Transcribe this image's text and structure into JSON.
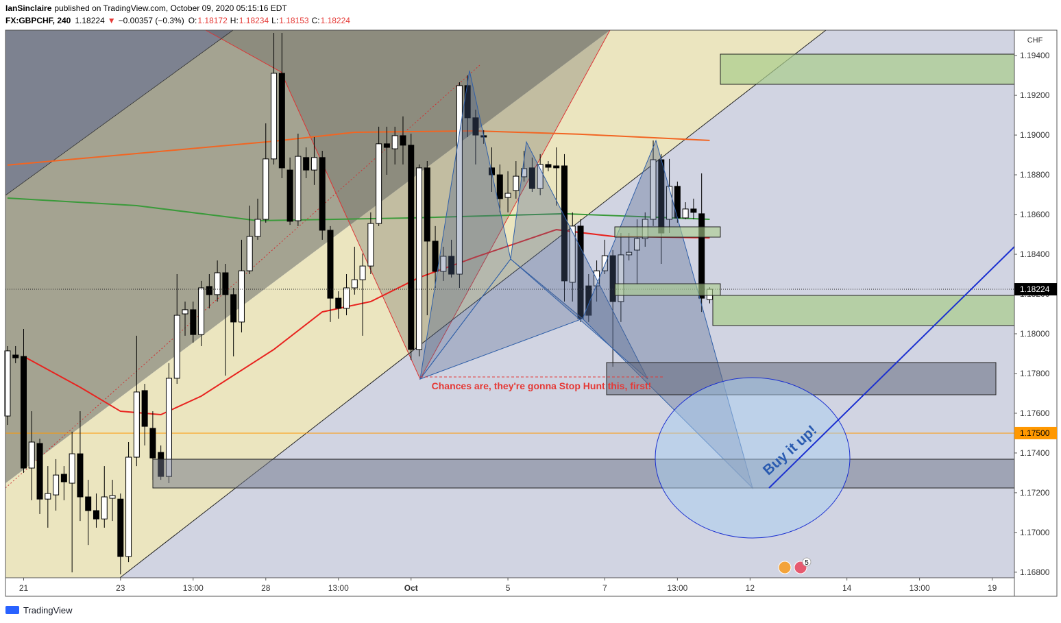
{
  "header": {
    "author": "IanSinclaire",
    "published": "published on TradingView.com, October 09, 2020 05:15:16 EDT",
    "symbol": "FX:GBPCHF, 240",
    "last": "1.18224",
    "arrow": "▼",
    "change": "−0.00357 (−0.3%)",
    "ohlc": [
      {
        "label": "O:",
        "value": "1.18172"
      },
      {
        "label": "H:",
        "value": "1.18234"
      },
      {
        "label": "L:",
        "value": "1.18153"
      },
      {
        "label": "C:",
        "value": "1.18224"
      }
    ]
  },
  "chart_data": {
    "type": "candlestick",
    "currency": "CHF",
    "up_color": "#ffffff",
    "down_color": "#000000",
    "x": [
      0,
      1,
      2,
      3,
      4,
      5,
      6,
      7,
      8,
      9,
      10,
      11,
      12,
      13,
      14,
      15,
      16,
      17,
      18,
      19,
      20,
      21,
      22,
      23,
      24,
      25,
      26,
      27,
      28,
      29,
      30,
      31,
      32,
      33,
      34,
      35,
      36,
      37,
      38,
      39,
      40,
      41,
      42,
      43,
      44,
      45,
      46,
      47,
      48,
      49,
      50,
      51,
      52,
      53,
      54,
      55,
      56,
      57,
      58,
      59,
      60,
      61,
      62,
      63,
      64,
      65,
      66,
      67,
      68,
      69,
      70,
      71,
      72,
      73,
      74,
      75,
      76,
      77,
      78,
      79,
      80,
      81,
      82,
      83,
      84,
      85,
      86,
      87
    ],
    "open": [
      1.17586,
      1.17893,
      1.17886,
      1.17324,
      1.17448,
      1.17168,
      1.17189,
      1.17293,
      1.17248,
      1.17396,
      1.17179,
      1.1711,
      1.17068,
      1.17172,
      1.17168,
      1.16879,
      1.17379,
      1.17714,
      1.17524,
      1.17403,
      1.17282,
      1.17776,
      1.181,
      1.18121,
      1.17996,
      1.18238,
      1.18197,
      1.18307,
      1.18197,
      1.18059,
      1.18317,
      1.1849,
      1.18576,
      1.1888,
      1.19311,
      1.18824,
      1.18569,
      1.18887,
      1.18824,
      1.18887,
      1.18521,
      1.18179,
      1.18128,
      1.18231,
      1.18272,
      1.18341,
      1.18555,
      1.18956,
      1.18931,
      1.18997,
      1.18949,
      1.17921,
      1.18835,
      1.18466,
      1.18314,
      1.1839,
      1.183,
      1.19249,
      1.19087,
      1.18997,
      1.18835,
      1.188,
      1.18686,
      1.18721,
      1.1879,
      1.18835,
      1.18731,
      1.18852,
      1.18845,
      1.18845,
      1.18259,
      1.18542,
      1.18241,
      1.18241,
      1.18317,
      1.18393,
      1.18162,
      1.18397,
      1.18421,
      1.18479,
      1.18576,
      1.18876,
      1.18576,
      1.18742,
      1.18583,
      1.18628,
      1.18604,
      1.18172
    ],
    "high": [
      1.17938,
      1.17938,
      1.18024,
      1.1761,
      1.17472,
      1.17334,
      1.17369,
      1.17334,
      1.17507,
      1.1761,
      1.17265,
      1.17196,
      1.17334,
      1.17265,
      1.17196,
      1.17455,
      1.1799,
      1.17748,
      1.1761,
      1.17438,
      1.17852,
      1.183,
      1.18162,
      1.18162,
      1.18266,
      1.183,
      1.18369,
      1.18352,
      1.18231,
      1.18473,
      1.18645,
      1.1868,
      1.19059,
      1.19514,
      1.19514,
      1.18887,
      1.19007,
      1.18938,
      1.1899,
      1.18921,
      1.18542,
      1.18214,
      1.183,
      1.18438,
      1.18404,
      1.18611,
      1.19042,
      1.19042,
      1.19042,
      1.19094,
      1.19007,
      1.18852,
      1.18869,
      1.18542,
      1.18438,
      1.18473,
      1.19266,
      1.19301,
      1.19128,
      1.19025,
      1.18938,
      1.18852,
      1.18818,
      1.18869,
      1.18921,
      1.18887,
      1.18904,
      1.18869,
      1.18938,
      1.18904,
      1.18611,
      1.18576,
      1.183,
      1.18369,
      1.18473,
      1.18421,
      1.18507,
      1.18507,
      1.18576,
      1.18611,
      1.18973,
      1.18904,
      1.1888,
      1.18766,
      1.18662,
      1.1868,
      1.18807,
      1.18234
    ],
    "low": [
      1.17541,
      1.17852,
      1.173,
      1.17162,
      1.17093,
      1.17024,
      1.1711,
      1.17162,
      1.16799,
      1.17058,
      1.16937,
      1.17024,
      1.17024,
      1.17058,
      1.16789,
      1.16851,
      1.17334,
      1.17438,
      1.17265,
      1.17265,
      1.17248,
      1.17748,
      1.1799,
      1.17955,
      1.17938,
      1.18128,
      1.18162,
      1.17789,
      1.17886,
      1.18007,
      1.183,
      1.18473,
      1.18559,
      1.18852,
      1.18783,
      1.18548,
      1.18542,
      1.18783,
      1.18749,
      1.18473,
      1.18059,
      1.18076,
      1.18093,
      1.18197,
      1.1799,
      1.183,
      1.18542,
      1.188,
      1.18852,
      1.18852,
      1.17869,
      1.17886,
      1.18093,
      1.18231,
      1.18266,
      1.18283,
      1.18231,
      1.1899,
      1.18852,
      1.18956,
      1.18714,
      1.18611,
      1.18611,
      1.1868,
      1.18766,
      1.18714,
      1.18697,
      1.18818,
      1.18645,
      1.18162,
      1.18162,
      1.18059,
      1.18059,
      1.18162,
      1.183,
      1.17834,
      1.18059,
      1.18369,
      1.18248,
      1.18438,
      1.18542,
      1.18352,
      1.18507,
      1.18559,
      1.18576,
      1.18576,
      1.1811,
      1.18153
    ],
    "close": [
      1.17914,
      1.17879,
      1.17324,
      1.17455,
      1.17168,
      1.17196,
      1.17289,
      1.17255,
      1.17396,
      1.17179,
      1.1711,
      1.17068,
      1.17179,
      1.17186,
      1.16879,
      1.17379,
      1.17707,
      1.17534,
      1.17375,
      1.17282,
      1.17776,
      1.18093,
      1.18121,
      1.17996,
      1.18231,
      1.18197,
      1.18307,
      1.18197,
      1.18059,
      1.18317,
      1.1849,
      1.18576,
      1.1888,
      1.19311,
      1.18835,
      1.18566,
      1.18893,
      1.18824,
      1.18887,
      1.18521,
      1.18179,
      1.18128,
      1.18231,
      1.18272,
      1.18341,
      1.18555,
      1.18956,
      1.18938,
      1.18997,
      1.18949,
      1.17921,
      1.18835,
      1.18466,
      1.18314,
      1.1839,
      1.183,
      1.19249,
      1.19087,
      1.19,
      1.1899,
      1.188,
      1.1868,
      1.18707,
      1.18793,
      1.18831,
      1.18731,
      1.18852,
      1.18838,
      1.18835,
      1.18266,
      1.18542,
      1.18076,
      1.18093,
      1.18317,
      1.18393,
      1.18162,
      1.18397,
      1.1841,
      1.18479,
      1.18576,
      1.18876,
      1.18507,
      1.18742,
      1.18583,
      1.18628,
      1.18611,
      1.18179,
      1.18224
    ],
    "overlays": [
      {
        "color": "#f26522",
        "x": [
          0,
          33,
          43,
          58,
          71,
          87
        ],
        "values": [
          1.18849,
          1.18969,
          1.19014,
          1.19021,
          1.19004,
          1.18973
        ]
      },
      {
        "color": "#3a9a3a",
        "x": [
          0,
          16,
          31,
          50,
          69,
          87
        ],
        "values": [
          1.18683,
          1.18645,
          1.18569,
          1.18583,
          1.18604,
          1.18576
        ]
      },
      {
        "color": "#e8231f",
        "x": [
          2,
          9,
          14,
          19,
          24,
          33,
          39,
          45,
          51,
          58,
          68,
          75,
          87
        ],
        "values": [
          1.17886,
          1.17731,
          1.1761,
          1.17593,
          1.17686,
          1.17921,
          1.1811,
          1.18162,
          1.18283,
          1.18386,
          1.18524,
          1.1849,
          1.18483
        ]
      }
    ],
    "hline": {
      "value": 1.175,
      "label": "1.17500",
      "color": "#ff9800"
    },
    "last_price": {
      "value": 1.18224,
      "label": "1.18224"
    },
    "xlim": [
      -0.25,
      124.75
    ],
    "xticks": [
      {
        "value": 2,
        "label": "21"
      },
      {
        "value": 14,
        "label": "23"
      },
      {
        "value": 23,
        "label": "13:00"
      },
      {
        "value": 32,
        "label": "28"
      },
      {
        "value": 41,
        "label": "13:00"
      },
      {
        "value": 50,
        "label": "Oct"
      },
      {
        "value": 62,
        "label": "5"
      },
      {
        "value": 74,
        "label": "7"
      },
      {
        "value": 83,
        "label": "13:00"
      },
      {
        "value": 92,
        "label": "12"
      },
      {
        "value": 104,
        "label": "14"
      },
      {
        "value": 113,
        "label": "13:00"
      },
      {
        "value": 122,
        "label": "19"
      }
    ],
    "ylim": [
      1.16772,
      1.19528
    ],
    "yticks": [
      {
        "value": 1.168,
        "label": "1.16800"
      },
      {
        "value": 1.17,
        "label": "1.17000"
      },
      {
        "value": 1.172,
        "label": "1.17200"
      },
      {
        "value": 1.174,
        "label": "1.17400"
      },
      {
        "value": 1.176,
        "label": "1.17600"
      },
      {
        "value": 1.178,
        "label": "1.17800"
      },
      {
        "value": 1.18,
        "label": "1.18000"
      },
      {
        "value": 1.182,
        "label": "1.18200"
      },
      {
        "value": 1.184,
        "label": "1.18400"
      },
      {
        "value": 1.186,
        "label": "1.18600"
      },
      {
        "value": 1.188,
        "label": "1.18800"
      },
      {
        "value": 1.19,
        "label": "1.19000"
      },
      {
        "value": 1.192,
        "label": "1.19200"
      },
      {
        "value": 1.194,
        "label": "1.19400"
      }
    ],
    "annotations": [
      "Chances are, they're gonna Stop Hunt this, first!",
      "Buy it up!"
    ]
  },
  "events_badge": "5",
  "footer": "TradingView"
}
